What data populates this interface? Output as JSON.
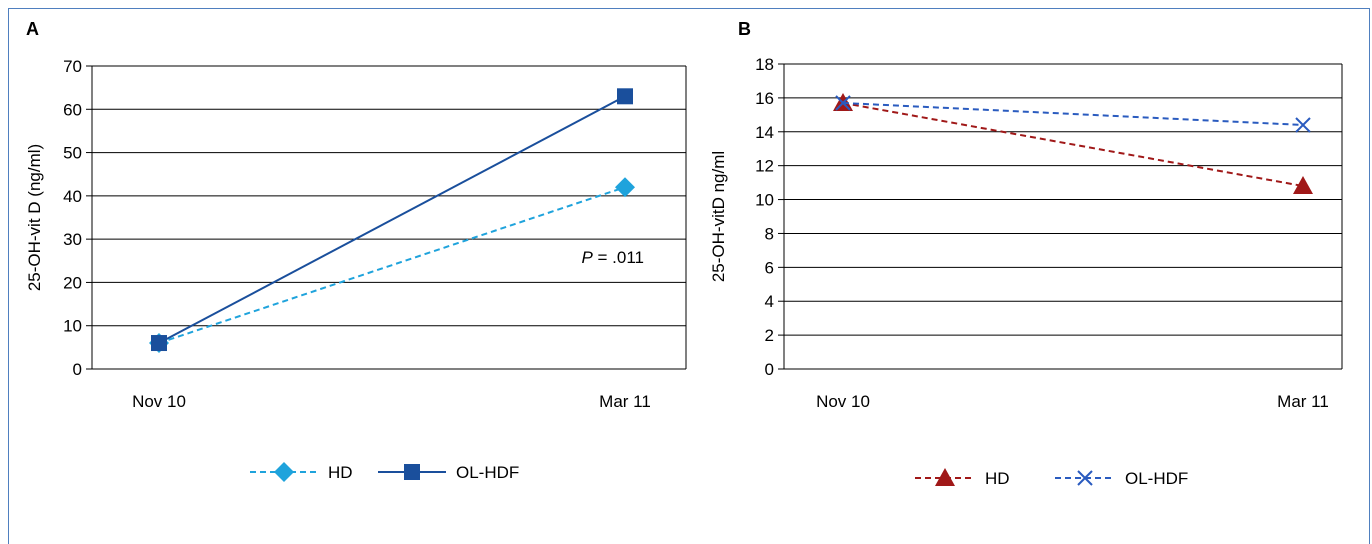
{
  "chart_data": [
    {
      "panel": "A",
      "type": "line",
      "x": [
        "Nov 10",
        "Mar 11"
      ],
      "ylabel": "25-OH-vit D (ng/ml)",
      "ylim": [
        0,
        70
      ],
      "yticks": [
        0,
        10,
        20,
        30,
        40,
        50,
        60,
        70
      ],
      "grid": true,
      "legend": "bottom",
      "annotation": {
        "italic": "P",
        "text": " = .011"
      },
      "series": [
        {
          "name": "HD",
          "values": [
            6,
            42
          ],
          "color": "#1fa3dc",
          "dash": "6,4",
          "marker": "diamond"
        },
        {
          "name": "OL-HDF",
          "values": [
            6,
            63
          ],
          "color": "#1a4f9c",
          "dash": "",
          "marker": "square"
        }
      ]
    },
    {
      "panel": "B",
      "type": "line",
      "x": [
        "Nov 10",
        "Mar 11"
      ],
      "ylabel": "25-OH-vitD ng/ml",
      "ylim": [
        0,
        18
      ],
      "yticks": [
        0,
        2,
        4,
        6,
        8,
        10,
        12,
        14,
        16,
        18
      ],
      "grid": true,
      "legend": "bottom",
      "series": [
        {
          "name": "HD",
          "values": [
            15.7,
            10.8
          ],
          "color": "#a01818",
          "dash": "6,4",
          "marker": "triangle"
        },
        {
          "name": "OL-HDF",
          "values": [
            15.7,
            14.4
          ],
          "color": "#2a5bbf",
          "dash": "6,4",
          "marker": "x"
        }
      ]
    }
  ]
}
